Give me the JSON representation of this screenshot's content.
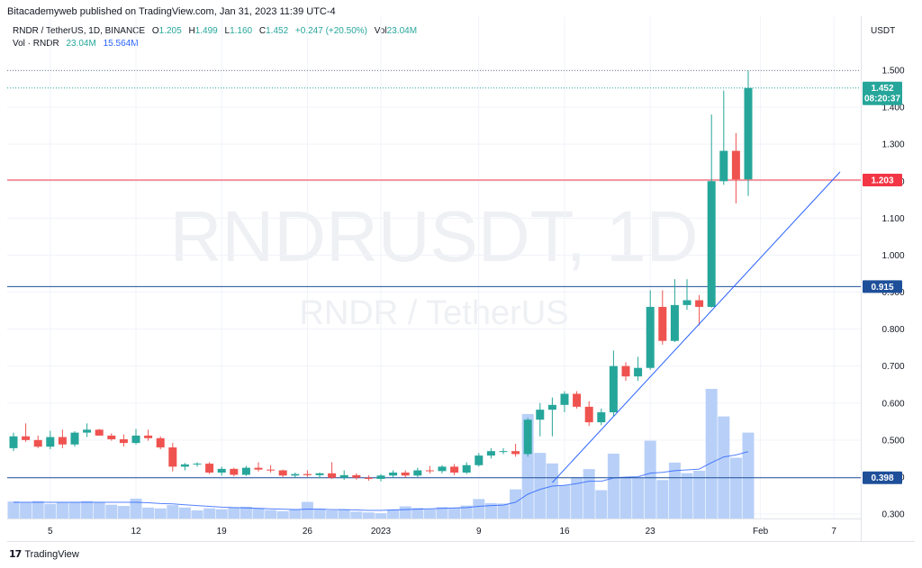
{
  "header": {
    "publisher_text": "Bitacademyweb published on TradingView.com, Jan 31, 2023 11:39 UTC-4"
  },
  "legend": {
    "symbol": "RNDR / TetherUS, 1D, BINANCE",
    "open_label": "O",
    "open": "1.205",
    "high_label": "H",
    "high": "1.499",
    "low_label": "L",
    "low": "1.160",
    "close_label": "C",
    "close": "1.452",
    "change": "+0.247 (+20.50%)",
    "vol_label": "Vol",
    "vol": "23.04M",
    "vol_series": "Vol · RNDR",
    "vol_value": "23.04M",
    "vol_ma": "15.564M"
  },
  "price_axis": {
    "currency": "USDT"
  },
  "watermark": {
    "line1": "RNDRUSDT, 1D",
    "line2": "RNDR / TetherUS"
  },
  "price_tags": [
    {
      "label": "1.452",
      "sub": "08:20:37",
      "value": 1.452,
      "color": "#26a69a"
    },
    {
      "label": "1.203",
      "value": 1.203,
      "color": "#f23645"
    },
    {
      "label": "0.915",
      "value": 0.915,
      "color": "#1e4f99"
    },
    {
      "label": "0.398",
      "value": 0.398,
      "color": "#1e4f99"
    }
  ],
  "footer": {
    "brand": "TradingView",
    "logo": "17"
  },
  "chart_data": {
    "type": "candlestick",
    "title": "RNDR / TetherUS, 1D, BINANCE",
    "ylim": [
      0.28,
      1.53
    ],
    "y_ticks": [
      0.3,
      0.4,
      0.5,
      0.6,
      0.7,
      0.8,
      0.9,
      1.0,
      1.1,
      1.2,
      1.3,
      1.4,
      1.5
    ],
    "y_tick_labels": [
      "0.300",
      "0.400",
      "0.500",
      "0.600",
      "0.700",
      "0.800",
      "0.900",
      "1.000",
      "1.100",
      "1.200",
      "1.300",
      "1.400",
      "1.500"
    ],
    "x_ticks": [
      {
        "index": 3,
        "label": "5"
      },
      {
        "index": 10,
        "label": "12"
      },
      {
        "index": 17,
        "label": "19"
      },
      {
        "index": 24,
        "label": "26"
      },
      {
        "index": 30,
        "label": "2023"
      },
      {
        "index": 38,
        "label": "9"
      },
      {
        "index": 45,
        "label": "16"
      },
      {
        "index": 52,
        "label": "23"
      },
      {
        "index": 61,
        "label": "Feb"
      },
      {
        "index": 67,
        "label": "7"
      }
    ],
    "horizontal_lines": [
      {
        "value": 1.203,
        "color": "#f23645"
      },
      {
        "value": 0.915,
        "color": "#1e4f99"
      },
      {
        "value": 0.398,
        "color": "#1e4f99"
      }
    ],
    "trend_line": {
      "from": {
        "index": 44,
        "value": 0.385
      },
      "to": {
        "index": 67.5,
        "value": 1.225
      }
    },
    "candles": [
      {
        "o": 0.478,
        "h": 0.52,
        "l": 0.47,
        "c": 0.51
      },
      {
        "o": 0.51,
        "h": 0.545,
        "l": 0.495,
        "c": 0.5
      },
      {
        "o": 0.5,
        "h": 0.512,
        "l": 0.478,
        "c": 0.482
      },
      {
        "o": 0.482,
        "h": 0.525,
        "l": 0.475,
        "c": 0.508
      },
      {
        "o": 0.508,
        "h": 0.528,
        "l": 0.478,
        "c": 0.488
      },
      {
        "o": 0.488,
        "h": 0.524,
        "l": 0.482,
        "c": 0.52
      },
      {
        "o": 0.52,
        "h": 0.545,
        "l": 0.508,
        "c": 0.528
      },
      {
        "o": 0.528,
        "h": 0.53,
        "l": 0.512,
        "c": 0.512
      },
      {
        "o": 0.512,
        "h": 0.518,
        "l": 0.498,
        "c": 0.502
      },
      {
        "o": 0.502,
        "h": 0.515,
        "l": 0.482,
        "c": 0.492
      },
      {
        "o": 0.492,
        "h": 0.53,
        "l": 0.488,
        "c": 0.512
      },
      {
        "o": 0.512,
        "h": 0.528,
        "l": 0.498,
        "c": 0.505
      },
      {
        "o": 0.505,
        "h": 0.51,
        "l": 0.475,
        "c": 0.48
      },
      {
        "o": 0.48,
        "h": 0.492,
        "l": 0.415,
        "c": 0.428
      },
      {
        "o": 0.428,
        "h": 0.438,
        "l": 0.418,
        "c": 0.434
      },
      {
        "o": 0.434,
        "h": 0.44,
        "l": 0.428,
        "c": 0.436
      },
      {
        "o": 0.436,
        "h": 0.44,
        "l": 0.408,
        "c": 0.412
      },
      {
        "o": 0.412,
        "h": 0.428,
        "l": 0.404,
        "c": 0.422
      },
      {
        "o": 0.422,
        "h": 0.425,
        "l": 0.402,
        "c": 0.406
      },
      {
        "o": 0.406,
        "h": 0.43,
        "l": 0.403,
        "c": 0.425
      },
      {
        "o": 0.425,
        "h": 0.44,
        "l": 0.415,
        "c": 0.42
      },
      {
        "o": 0.42,
        "h": 0.432,
        "l": 0.412,
        "c": 0.418
      },
      {
        "o": 0.418,
        "h": 0.42,
        "l": 0.4,
        "c": 0.404
      },
      {
        "o": 0.404,
        "h": 0.412,
        "l": 0.398,
        "c": 0.408
      },
      {
        "o": 0.408,
        "h": 0.418,
        "l": 0.4,
        "c": 0.405
      },
      {
        "o": 0.405,
        "h": 0.412,
        "l": 0.396,
        "c": 0.41
      },
      {
        "o": 0.41,
        "h": 0.44,
        "l": 0.395,
        "c": 0.398
      },
      {
        "o": 0.398,
        "h": 0.418,
        "l": 0.392,
        "c": 0.405
      },
      {
        "o": 0.405,
        "h": 0.41,
        "l": 0.393,
        "c": 0.398
      },
      {
        "o": 0.398,
        "h": 0.405,
        "l": 0.39,
        "c": 0.395
      },
      {
        "o": 0.395,
        "h": 0.408,
        "l": 0.388,
        "c": 0.404
      },
      {
        "o": 0.404,
        "h": 0.418,
        "l": 0.398,
        "c": 0.412
      },
      {
        "o": 0.412,
        "h": 0.418,
        "l": 0.398,
        "c": 0.404
      },
      {
        "o": 0.404,
        "h": 0.425,
        "l": 0.4,
        "c": 0.418
      },
      {
        "o": 0.418,
        "h": 0.43,
        "l": 0.41,
        "c": 0.416
      },
      {
        "o": 0.416,
        "h": 0.432,
        "l": 0.41,
        "c": 0.428
      },
      {
        "o": 0.428,
        "h": 0.435,
        "l": 0.405,
        "c": 0.412
      },
      {
        "o": 0.412,
        "h": 0.44,
        "l": 0.408,
        "c": 0.432
      },
      {
        "o": 0.432,
        "h": 0.465,
        "l": 0.428,
        "c": 0.458
      },
      {
        "o": 0.458,
        "h": 0.478,
        "l": 0.45,
        "c": 0.47
      },
      {
        "o": 0.47,
        "h": 0.478,
        "l": 0.462,
        "c": 0.47
      },
      {
        "o": 0.47,
        "h": 0.49,
        "l": 0.455,
        "c": 0.462
      },
      {
        "o": 0.462,
        "h": 0.56,
        "l": 0.455,
        "c": 0.555
      },
      {
        "o": 0.555,
        "h": 0.6,
        "l": 0.51,
        "c": 0.582
      },
      {
        "o": 0.582,
        "h": 0.615,
        "l": 0.51,
        "c": 0.595
      },
      {
        "o": 0.595,
        "h": 0.632,
        "l": 0.575,
        "c": 0.625
      },
      {
        "o": 0.625,
        "h": 0.632,
        "l": 0.585,
        "c": 0.59
      },
      {
        "o": 0.59,
        "h": 0.605,
        "l": 0.538,
        "c": 0.548
      },
      {
        "o": 0.548,
        "h": 0.585,
        "l": 0.54,
        "c": 0.575
      },
      {
        "o": 0.575,
        "h": 0.742,
        "l": 0.565,
        "c": 0.7
      },
      {
        "o": 0.7,
        "h": 0.71,
        "l": 0.66,
        "c": 0.672
      },
      {
        "o": 0.672,
        "h": 0.725,
        "l": 0.66,
        "c": 0.695
      },
      {
        "o": 0.695,
        "h": 0.905,
        "l": 0.69,
        "c": 0.86
      },
      {
        "o": 0.86,
        "h": 0.905,
        "l": 0.758,
        "c": 0.768
      },
      {
        "o": 0.768,
        "h": 0.935,
        "l": 0.765,
        "c": 0.865
      },
      {
        "o": 0.865,
        "h": 0.935,
        "l": 0.852,
        "c": 0.878
      },
      {
        "o": 0.878,
        "h": 0.892,
        "l": 0.81,
        "c": 0.86
      },
      {
        "o": 0.86,
        "h": 1.38,
        "l": 0.858,
        "c": 1.2
      },
      {
        "o": 1.2,
        "h": 1.445,
        "l": 1.19,
        "c": 1.282
      },
      {
        "o": 1.282,
        "h": 1.33,
        "l": 1.14,
        "c": 1.205
      },
      {
        "o": 1.205,
        "h": 1.499,
        "l": 1.16,
        "c": 1.452
      }
    ],
    "volume": [
      0.42,
      0.39,
      0.43,
      0.36,
      0.4,
      0.41,
      0.43,
      0.4,
      0.34,
      0.31,
      0.49,
      0.27,
      0.25,
      0.33,
      0.27,
      0.2,
      0.25,
      0.23,
      0.27,
      0.29,
      0.26,
      0.21,
      0.18,
      0.23,
      0.41,
      0.24,
      0.2,
      0.22,
      0.17,
      0.15,
      0.13,
      0.22,
      0.3,
      0.26,
      0.23,
      0.28,
      0.26,
      0.32,
      0.48,
      0.38,
      0.37,
      0.72,
      2.58,
      1.62,
      1.36,
      0.82,
      1.02,
      1.22,
      0.7,
      1.6,
      1.03,
      1.0,
      1.92,
      0.95,
      1.38,
      1.12,
      1.18,
      3.2,
      2.52,
      1.5,
      2.12
    ],
    "volume_ma": [
      0.4,
      0.4,
      0.4,
      0.4,
      0.4,
      0.4,
      0.4,
      0.4,
      0.4,
      0.4,
      0.4,
      0.39,
      0.37,
      0.36,
      0.34,
      0.32,
      0.3,
      0.28,
      0.27,
      0.26,
      0.25,
      0.24,
      0.23,
      0.22,
      0.23,
      0.23,
      0.22,
      0.22,
      0.21,
      0.2,
      0.2,
      0.21,
      0.22,
      0.23,
      0.24,
      0.25,
      0.26,
      0.27,
      0.3,
      0.32,
      0.33,
      0.4,
      0.6,
      0.72,
      0.8,
      0.82,
      0.86,
      0.92,
      0.92,
      1.0,
      1.02,
      1.03,
      1.12,
      1.14,
      1.18,
      1.2,
      1.22,
      1.38,
      1.52,
      1.57,
      1.65
    ],
    "volume_scale_max": 4.0
  }
}
